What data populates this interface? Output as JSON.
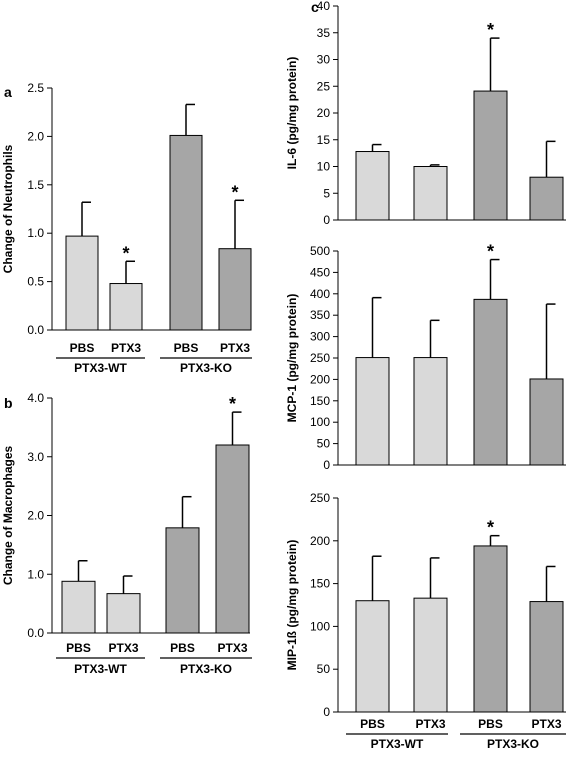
{
  "chart_data": [
    {
      "panel": "a",
      "type": "bar",
      "ylabel": "Change of Neutrophils",
      "ylim": [
        0,
        2.5
      ],
      "yticks": [
        0,
        0.5,
        1.0,
        1.5,
        2.0,
        2.5
      ],
      "tick_labels": [
        "0.0",
        "0.5",
        "1.0",
        "1.5",
        "2.0",
        "2.5"
      ],
      "categories": [
        "PBS",
        "PTX3",
        "PBS",
        "PTX3"
      ],
      "groups": [
        {
          "name": "PTX3-WT",
          "span": [
            0,
            1
          ]
        },
        {
          "name": "PTX3-KO",
          "span": [
            2,
            3
          ]
        }
      ],
      "values": [
        0.97,
        0.48,
        2.01,
        0.84
      ],
      "errors": [
        0.35,
        0.23,
        0.32,
        0.5
      ],
      "significant": [
        false,
        true,
        false,
        true
      ],
      "bar_colors": [
        "#d9d9d9",
        "#d9d9d9",
        "#a6a6a6",
        "#a6a6a6"
      ]
    },
    {
      "panel": "b",
      "type": "bar",
      "ylabel": "Change of Macrophages",
      "ylim": [
        0,
        4.0
      ],
      "yticks": [
        0,
        1,
        2,
        3,
        4
      ],
      "tick_labels": [
        "0.0",
        "1.0",
        "2.0",
        "3.0",
        "4.0"
      ],
      "categories": [
        "PBS",
        "PTX3",
        "PBS",
        "PTX3"
      ],
      "groups": [
        {
          "name": "PTX3-WT",
          "span": [
            0,
            1
          ]
        },
        {
          "name": "PTX3-KO",
          "span": [
            2,
            3
          ]
        }
      ],
      "values": [
        0.88,
        0.67,
        1.79,
        3.2
      ],
      "errors": [
        0.35,
        0.3,
        0.53,
        0.56
      ],
      "significant": [
        false,
        false,
        false,
        true
      ],
      "bar_colors": [
        "#d9d9d9",
        "#d9d9d9",
        "#a6a6a6",
        "#a6a6a6"
      ]
    },
    {
      "panel": "c",
      "type": "bar",
      "ylabel": "IL-6 (pg/mg protein)",
      "ylim": [
        0,
        40
      ],
      "yticks": [
        0,
        5,
        10,
        15,
        20,
        25,
        30,
        35,
        40
      ],
      "tick_labels": [
        "0",
        "5",
        "10",
        "15",
        "20",
        "25",
        "30",
        "35",
        "40"
      ],
      "categories": [
        "PBS",
        "PTX3",
        "PBS",
        "PTX3"
      ],
      "values": [
        12.8,
        10.0,
        24.1,
        8.0
      ],
      "errors": [
        1.3,
        0.3,
        9.9,
        6.7
      ],
      "significant": [
        false,
        false,
        true,
        false
      ],
      "bar_colors": [
        "#d9d9d9",
        "#d9d9d9",
        "#a6a6a6",
        "#a6a6a6"
      ]
    },
    {
      "type": "bar",
      "ylabel": "MCP-1 (pg/mg protein)",
      "ylim": [
        0,
        500
      ],
      "yticks": [
        0,
        50,
        100,
        150,
        200,
        250,
        300,
        350,
        400,
        450,
        500
      ],
      "tick_labels": [
        "0",
        "50",
        "100",
        "150",
        "200",
        "250",
        "300",
        "350",
        "400",
        "450",
        "500"
      ],
      "categories": [
        "PBS",
        "PTX3",
        "PBS",
        "PTX3"
      ],
      "values": [
        251,
        251,
        387,
        201
      ],
      "errors": [
        140,
        87,
        93,
        175
      ],
      "significant": [
        false,
        false,
        true,
        false
      ],
      "bar_colors": [
        "#d9d9d9",
        "#d9d9d9",
        "#a6a6a6",
        "#a6a6a6"
      ]
    },
    {
      "type": "bar",
      "ylabel": "MIP-1ß (pg/mg protein)",
      "ylim": [
        0,
        250
      ],
      "yticks": [
        0,
        50,
        100,
        150,
        200,
        250
      ],
      "tick_labels": [
        "0",
        "50",
        "100",
        "150",
        "200",
        "250"
      ],
      "categories": [
        "PBS",
        "PTX3",
        "PBS",
        "PTX3"
      ],
      "groups": [
        {
          "name": "PTX3-WT",
          "span": [
            0,
            1
          ]
        },
        {
          "name": "PTX3-KO",
          "span": [
            2,
            3
          ]
        }
      ],
      "values": [
        130,
        133,
        194,
        129
      ],
      "errors": [
        52,
        47,
        12,
        41
      ],
      "significant": [
        false,
        false,
        true,
        false
      ],
      "bar_colors": [
        "#d9d9d9",
        "#d9d9d9",
        "#a6a6a6",
        "#a6a6a6"
      ]
    }
  ],
  "significance_marker": "*"
}
